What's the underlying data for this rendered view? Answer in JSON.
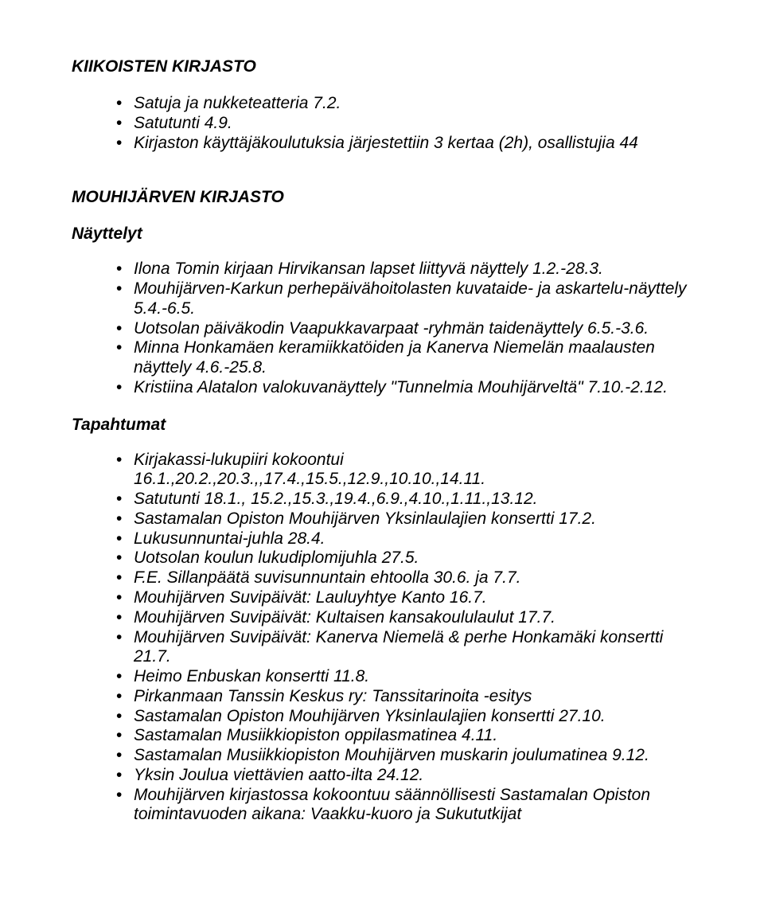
{
  "section1": {
    "title": "KIIKOISTEN KIRJASTO",
    "items": [
      "Satuja ja nukketeatteria 7.2.",
      "Satutunti 4.9.",
      "Kirjaston käyttäjäkoulutuksia järjestettiin 3 kertaa (2h), osallistujia 44"
    ]
  },
  "section2": {
    "title": "MOUHIJÄRVEN KIRJASTO",
    "sub1": {
      "title": "Näyttelyt",
      "items": [
        "Ilona Tomin kirjaan Hirvikansan lapset liittyvä näyttely 1.2.-28.3.",
        "Mouhijärven-Karkun perhepäivähoitolasten kuvataide- ja askartelu-näyttely 5.4.-6.5.",
        "Uotsolan päiväkodin Vaapukkavarpaat -ryhmän taidenäyttely 6.5.-3.6.",
        "Minna Honkamäen keramiikkatöiden ja Kanerva Niemelän maalausten näyttely 4.6.-25.8.",
        "Kristiina Alatalon valokuvanäyttely \"Tunnelmia Mouhijärveltä\" 7.10.-2.12."
      ]
    },
    "sub2": {
      "title": "Tapahtumat",
      "items": [
        "Kirjakassi-lukupiiri kokoontui 16.1.,20.2.,20.3.,,17.4.,15.5.,12.9.,10.10.,14.11.",
        "Satutunti 18.1., 15.2.,15.3.,19.4.,6.9.,4.10.,1.11.,13.12.",
        "Sastamalan Opiston Mouhijärven Yksinlaulajien konsertti 17.2.",
        "Lukusunnuntai-juhla 28.4.",
        "Uotsolan koulun lukudiplomijuhla 27.5.",
        "F.E. Sillanpäätä suvisunnuntain ehtoolla 30.6. ja 7.7.",
        "Mouhijärven Suvipäivät: Lauluyhtye Kanto 16.7.",
        "Mouhijärven Suvipäivät: Kultaisen kansakoululaulut 17.7.",
        "Mouhijärven Suvipäivät: Kanerva Niemelä & perhe Honkamäki konsertti 21.7.",
        "Heimo Enbuskan konsertti 11.8.",
        "Pirkanmaan Tanssin Keskus ry: Tanssitarinoita -esitys",
        "Sastamalan Opiston Mouhijärven Yksinlaulajien konsertti 27.10.",
        "Sastamalan Musiikkiopiston oppilasmatinea 4.11.",
        "Sastamalan Musiikkiopiston Mouhijärven muskarin joulumatinea 9.12.",
        "Yksin Joulua viettävien aatto-ilta 24.12.",
        "Mouhijärven kirjastossa kokoontuu säännöllisesti Sastamalan Opiston toimintavuoden aikana: Vaakku-kuoro ja Sukututkijat"
      ]
    }
  }
}
